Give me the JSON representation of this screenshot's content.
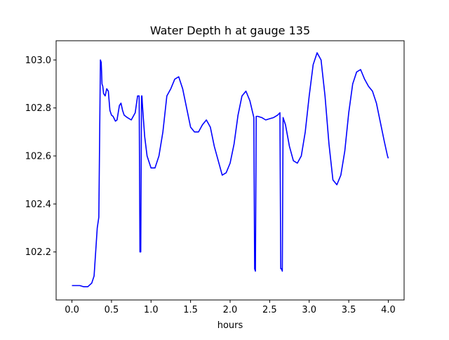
{
  "chart_data": {
    "type": "line",
    "title": "Water Depth h at gauge 135",
    "xlabel": "hours",
    "ylabel": "",
    "xlim": [
      -0.2,
      4.2
    ],
    "ylim": [
      102.0,
      103.08
    ],
    "grid": false,
    "line_color": "#0000ff",
    "x_ticks": [
      0.0,
      0.5,
      1.0,
      1.5,
      2.0,
      2.5,
      3.0,
      3.5,
      4.0
    ],
    "x_tick_labels": [
      "0.0",
      "0.5",
      "1.0",
      "1.5",
      "2.0",
      "2.5",
      "3.0",
      "3.5",
      "4.0"
    ],
    "y_ticks": [
      102.2,
      102.4,
      102.6,
      102.8,
      103.0
    ],
    "y_tick_labels": [
      "102.2",
      "102.4",
      "102.6",
      "102.8",
      "103.0"
    ],
    "series": [
      {
        "x": [
          0.0,
          0.1,
          0.15,
          0.2,
          0.25,
          0.28,
          0.3,
          0.32,
          0.34,
          0.36,
          0.37,
          0.375,
          0.38,
          0.39,
          0.4,
          0.42,
          0.44,
          0.46,
          0.48,
          0.5,
          0.52,
          0.55,
          0.57,
          0.6,
          0.62,
          0.64,
          0.66,
          0.68,
          0.7,
          0.75,
          0.8,
          0.83,
          0.85,
          0.86,
          0.865,
          0.87,
          0.88,
          0.885,
          0.89,
          0.9,
          0.92,
          0.95,
          1.0,
          1.05,
          1.1,
          1.15,
          1.2,
          1.25,
          1.3,
          1.35,
          1.4,
          1.45,
          1.5,
          1.55,
          1.6,
          1.65,
          1.7,
          1.75,
          1.8,
          1.85,
          1.9,
          1.95,
          2.0,
          2.05,
          2.1,
          2.15,
          2.2,
          2.25,
          2.3,
          2.31,
          2.32,
          2.33,
          2.35,
          2.4,
          2.45,
          2.5,
          2.55,
          2.6,
          2.63,
          2.64,
          2.65,
          2.66,
          2.67,
          2.7,
          2.75,
          2.8,
          2.85,
          2.9,
          2.95,
          3.0,
          3.05,
          3.1,
          3.15,
          3.2,
          3.25,
          3.3,
          3.35,
          3.4,
          3.45,
          3.5,
          3.55,
          3.6,
          3.65,
          3.7,
          3.75,
          3.8,
          3.85,
          3.9,
          3.95,
          3.99,
          4.0
        ],
        "y": [
          102.06,
          102.06,
          102.055,
          102.055,
          102.07,
          102.1,
          102.2,
          102.3,
          102.345,
          103.0,
          102.99,
          102.95,
          102.9,
          102.89,
          102.86,
          102.85,
          102.88,
          102.87,
          102.79,
          102.77,
          102.765,
          102.745,
          102.75,
          102.81,
          102.82,
          102.79,
          102.77,
          102.765,
          102.76,
          102.75,
          102.78,
          102.85,
          102.85,
          102.2,
          102.205,
          102.2,
          102.85,
          102.85,
          102.82,
          102.77,
          102.68,
          102.6,
          102.55,
          102.55,
          102.6,
          102.7,
          102.85,
          102.88,
          102.92,
          102.93,
          102.88,
          102.8,
          102.72,
          102.7,
          102.7,
          102.73,
          102.75,
          102.72,
          102.64,
          102.58,
          102.52,
          102.53,
          102.57,
          102.65,
          102.77,
          102.85,
          102.87,
          102.83,
          102.76,
          102.13,
          102.12,
          102.765,
          102.765,
          102.76,
          102.75,
          102.755,
          102.76,
          102.77,
          102.78,
          102.13,
          102.13,
          102.12,
          102.76,
          102.73,
          102.64,
          102.58,
          102.57,
          102.6,
          102.7,
          102.85,
          102.98,
          103.03,
          103.0,
          102.85,
          102.65,
          102.5,
          102.48,
          102.52,
          102.62,
          102.78,
          102.9,
          102.95,
          102.96,
          102.92,
          102.89,
          102.87,
          102.82,
          102.74,
          102.66,
          102.6,
          102.59
        ]
      }
    ]
  }
}
